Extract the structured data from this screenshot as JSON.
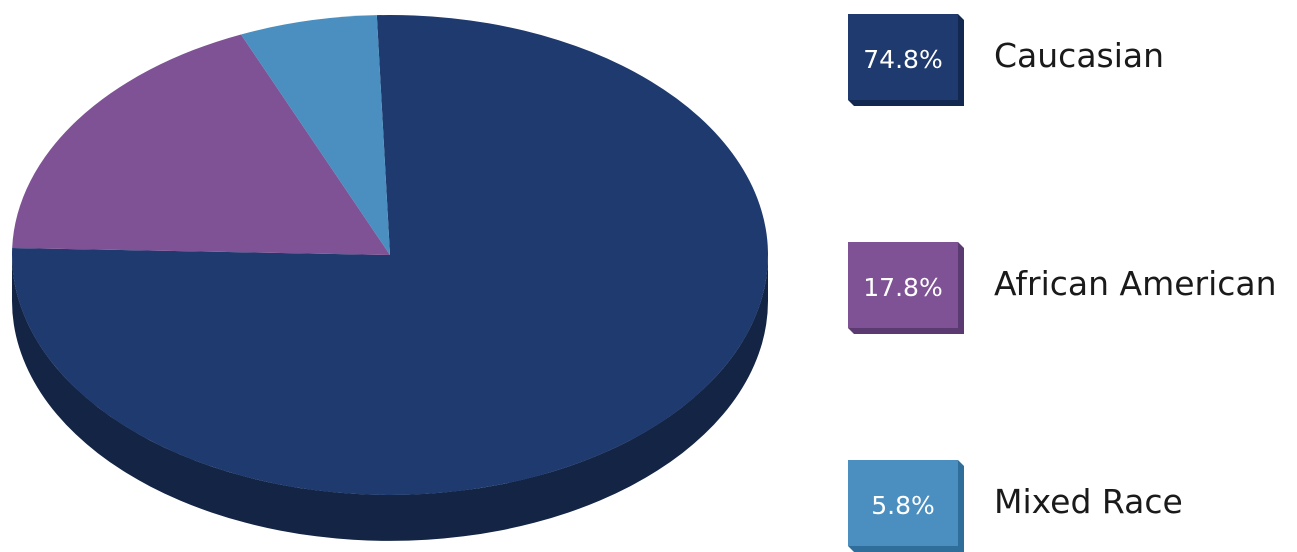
{
  "chart_data": {
    "type": "pie",
    "title": "",
    "slices": [
      {
        "label": "Caucasian",
        "value": 74.8,
        "display": "74.8%",
        "color": "#1e3a6e"
      },
      {
        "label": "African American",
        "value": 17.8,
        "display": "17.8%",
        "color": "#7e5295"
      },
      {
        "label": "Mixed Race",
        "value": 5.8,
        "display": "5.8%",
        "color": "#4a8fbf"
      }
    ],
    "legend_position": "right",
    "style": "3d"
  }
}
